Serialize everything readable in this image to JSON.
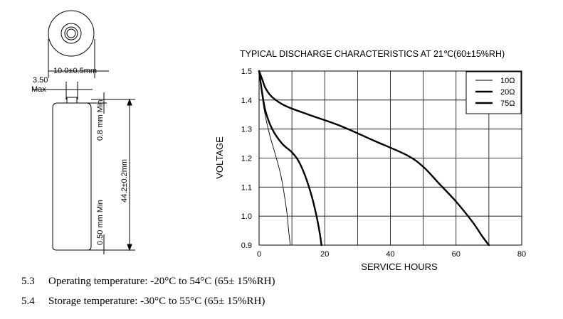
{
  "drawing": {
    "dim_diameter": "10.0±0.5mm",
    "dim_nub_top": "3.50",
    "dim_nub_bottom": "Max",
    "dim_top_min": "0.8 mm Min",
    "dim_height": "44.2±0.2mm",
    "dim_bottom_min": "0.50 mm Min"
  },
  "chart_data": {
    "type": "line",
    "title": "TYPICAL DISCHARGE CHARACTERISTICS AT 21℃(60±15%RH)",
    "xlabel": "SERVICE HOURS",
    "ylabel": "VOLTAGE",
    "xlim": [
      0,
      80
    ],
    "ylim": [
      0.9,
      1.5
    ],
    "xticks": [
      0,
      20,
      40,
      60,
      80
    ],
    "yticks": [
      1.5,
      1.4,
      1.3,
      1.2,
      1.1,
      1.0,
      0.9
    ],
    "grid": true,
    "legend_position": "top-right",
    "series": [
      {
        "name": "10Ω",
        "weight": "thin",
        "x": [
          0,
          0.5,
          1.5,
          3,
          4.5,
          6,
          7,
          8,
          8.6,
          9,
          9.5
        ],
        "y": [
          1.5,
          1.45,
          1.37,
          1.29,
          1.23,
          1.17,
          1.12,
          1.05,
          1.0,
          0.95,
          0.9
        ]
      },
      {
        "name": "20Ω",
        "weight": "thick",
        "x": [
          0,
          1,
          2,
          4,
          7,
          10,
          12,
          14,
          16,
          17.5,
          18.5,
          19
        ],
        "y": [
          1.5,
          1.42,
          1.36,
          1.3,
          1.25,
          1.22,
          1.19,
          1.14,
          1.07,
          1.0,
          0.94,
          0.9
        ]
      },
      {
        "name": "75Ω",
        "weight": "thick",
        "x": [
          0,
          1,
          2,
          4,
          8,
          15,
          25,
          35,
          45,
          50,
          55,
          60,
          65,
          68,
          70
        ],
        "y": [
          1.5,
          1.47,
          1.44,
          1.41,
          1.38,
          1.35,
          1.31,
          1.26,
          1.21,
          1.17,
          1.11,
          1.05,
          0.98,
          0.93,
          0.9
        ]
      }
    ]
  },
  "specs": [
    {
      "num": "5.3",
      "text": "Operating temperature: -20°C to 54°C (65± 15%RH)"
    },
    {
      "num": "5.4",
      "text": "Storage temperature: -30°C to 55°C (65± 15%RH)"
    }
  ]
}
